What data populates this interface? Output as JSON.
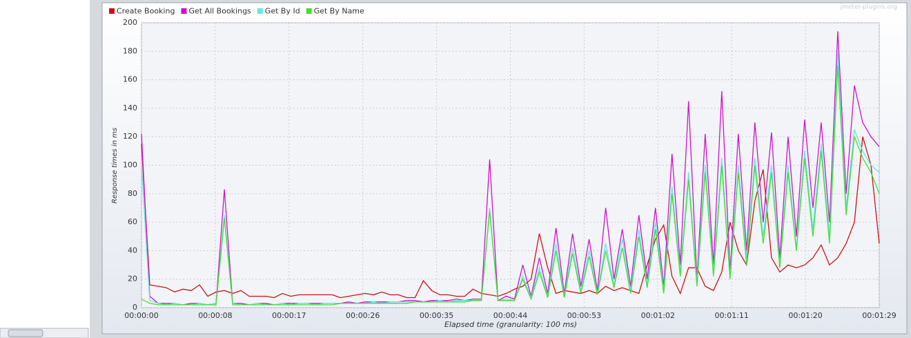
{
  "chart_data": {
    "type": "line",
    "xlabel": "Elapsed time (granularity: 100 ms)",
    "ylabel": "Response times in ms",
    "watermark": "jmeter-plugins.org",
    "x": [
      0,
      1,
      2,
      3,
      4,
      5,
      6,
      7,
      8,
      9,
      10,
      11,
      12,
      13,
      14,
      15,
      16,
      17,
      18,
      19,
      20,
      21,
      22,
      23,
      24,
      25,
      26,
      27,
      28,
      29,
      30,
      31,
      32,
      33,
      34,
      35,
      36,
      37,
      38,
      39,
      40,
      41,
      42,
      43,
      44,
      45,
      46,
      47,
      48,
      49,
      50,
      51,
      52,
      53,
      54,
      55,
      56,
      57,
      58,
      59,
      60,
      61,
      62,
      63,
      64,
      65,
      66,
      67,
      68,
      69,
      70,
      71,
      72,
      73,
      74,
      75,
      76,
      77,
      78,
      79,
      80,
      81,
      82,
      83,
      84,
      85,
      86,
      87,
      88,
      89
    ],
    "series": [
      {
        "name": "Create Booking",
        "color": "#cc1111",
        "values": [
          115,
          16,
          15,
          14,
          11,
          13,
          12,
          16,
          8,
          11,
          12,
          10,
          12,
          8,
          8,
          8,
          7,
          10,
          8,
          9,
          9,
          9,
          9,
          9,
          7,
          8,
          9,
          10,
          9,
          11,
          9,
          9,
          7,
          7,
          19,
          12,
          9,
          9,
          8,
          8,
          13,
          10,
          9,
          8,
          10,
          13,
          15,
          20,
          52,
          28,
          10,
          12,
          11,
          10,
          12,
          10,
          15,
          12,
          14,
          12,
          10,
          30,
          48,
          58,
          22,
          10,
          28,
          28,
          15,
          12,
          25,
          60,
          40,
          30,
          75,
          97,
          35,
          25,
          30,
          28,
          30,
          35,
          44,
          30,
          35,
          45,
          60,
          120,
          100,
          45
        ]
      },
      {
        "name": "Get All Bookings",
        "color": "#cc11cc",
        "values": [
          122,
          8,
          3,
          3,
          3,
          2,
          3,
          3,
          2,
          3,
          83,
          3,
          3,
          2,
          3,
          3,
          2,
          3,
          3,
          3,
          3,
          3,
          3,
          3,
          3,
          4,
          3,
          4,
          4,
          4,
          4,
          4,
          5,
          5,
          4,
          5,
          5,
          5,
          6,
          5,
          6,
          6,
          104,
          5,
          8,
          6,
          30,
          8,
          35,
          10,
          56,
          10,
          52,
          15,
          48,
          12,
          70,
          20,
          55,
          15,
          65,
          20,
          70,
          15,
          108,
          30,
          145,
          20,
          122,
          30,
          152,
          25,
          122,
          40,
          130,
          60,
          123,
          35,
          120,
          50,
          132,
          70,
          130,
          60,
          194,
          80,
          156,
          130,
          120,
          113
        ]
      },
      {
        "name": "Get By Id",
        "color": "#66e6e6",
        "values": [
          100,
          5,
          3,
          2,
          3,
          2,
          2,
          3,
          2,
          3,
          65,
          3,
          2,
          2,
          3,
          2,
          2,
          3,
          2,
          3,
          3,
          2,
          3,
          3,
          3,
          3,
          3,
          3,
          4,
          3,
          4,
          4,
          4,
          4,
          4,
          4,
          5,
          4,
          5,
          5,
          5,
          5,
          70,
          5,
          6,
          5,
          22,
          7,
          28,
          8,
          45,
          8,
          42,
          12,
          40,
          10,
          45,
          16,
          48,
          12,
          55,
          16,
          60,
          12,
          85,
          25,
          95,
          18,
          100,
          25,
          105,
          22,
          100,
          35,
          105,
          50,
          100,
          30,
          100,
          42,
          110,
          55,
          115,
          50,
          180,
          70,
          125,
          110,
          100,
          95
        ]
      },
      {
        "name": "Get By Name",
        "color": "#44dd33",
        "values": [
          6,
          3,
          2,
          2,
          2,
          2,
          2,
          2,
          2,
          2,
          63,
          2,
          2,
          2,
          2,
          2,
          2,
          2,
          2,
          2,
          2,
          2,
          2,
          2,
          3,
          3,
          3,
          3,
          3,
          3,
          3,
          3,
          3,
          4,
          4,
          4,
          4,
          4,
          4,
          4,
          5,
          5,
          68,
          5,
          5,
          5,
          20,
          6,
          25,
          7,
          40,
          7,
          38,
          10,
          36,
          9,
          40,
          14,
          42,
          10,
          50,
          14,
          55,
          10,
          80,
          22,
          90,
          15,
          95,
          22,
          100,
          20,
          95,
          30,
          100,
          45,
          95,
          28,
          95,
          40,
          105,
          50,
          110,
          45,
          170,
          65,
          120,
          105,
          95,
          80
        ]
      }
    ],
    "xlim": [
      0,
      89
    ],
    "xticks": [
      {
        "value": 0,
        "label": "00:00:00"
      },
      {
        "value": 8.9,
        "label": "00:00:08"
      },
      {
        "value": 17.8,
        "label": "00:00:17"
      },
      {
        "value": 26.7,
        "label": "00:00:26"
      },
      {
        "value": 35.6,
        "label": "00:00:35"
      },
      {
        "value": 44.5,
        "label": "00:00:44"
      },
      {
        "value": 53.4,
        "label": "00:00:53"
      },
      {
        "value": 62.3,
        "label": "00:01:02"
      },
      {
        "value": 71.2,
        "label": "00:01:11"
      },
      {
        "value": 80.1,
        "label": "00:01:20"
      },
      {
        "value": 89,
        "label": "00:01:29"
      }
    ],
    "ylim": [
      0,
      200
    ],
    "yticks": [
      0,
      20,
      40,
      60,
      80,
      100,
      120,
      140,
      160,
      180,
      200
    ],
    "grid": true,
    "legend": "top-left"
  }
}
